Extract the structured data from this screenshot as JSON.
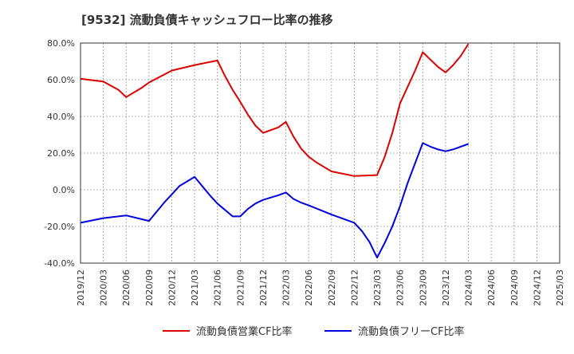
{
  "chart_data": {
    "type": "line",
    "title": "[9532]  流動負債キャッシュフロー比率の推移",
    "xlabel": "",
    "ylabel": "",
    "x": [
      "2019/12",
      "2020/03",
      "2020/06",
      "2020/09",
      "2020/12",
      "2021/03",
      "2021/06",
      "2021/09",
      "2021/12",
      "2022/03",
      "2022/06",
      "2022/09",
      "2022/12",
      "2023/03",
      "2023/06",
      "2023/09",
      "2023/12",
      "2024/03",
      "2024/06",
      "2024/09",
      "2024/12",
      "2025/03"
    ],
    "ylim": [
      -40,
      80
    ],
    "yticks": [
      -40,
      -20,
      0,
      20,
      40,
      60,
      80
    ],
    "ytick_labels": [
      "-40.0%",
      "-20.0%",
      "0.0%",
      "20.0%",
      "40.0%",
      "60.0%",
      "80.0%"
    ],
    "grid": true,
    "legend_position": "bottom",
    "series": [
      {
        "name": "流動負債営業CF比率",
        "color": "#dd0000",
        "points": [
          [
            "2019/12",
            60.5
          ],
          [
            "2020/01",
            60.0
          ],
          [
            "2020/03",
            59.0
          ],
          [
            "2020/05",
            54.5
          ],
          [
            "2020/06",
            50.5
          ],
          [
            "2020/08",
            55.5
          ],
          [
            "2020/09",
            58.5
          ],
          [
            "2020/12",
            65.0
          ],
          [
            "2021/03",
            68.0
          ],
          [
            "2021/06",
            70.5
          ],
          [
            "2021/07",
            62.0
          ],
          [
            "2021/08",
            54.5
          ],
          [
            "2021/09",
            48.0
          ],
          [
            "2021/10",
            41.0
          ],
          [
            "2021/11",
            35.0
          ],
          [
            "2021/12",
            31.0
          ],
          [
            "2022/02",
            34.0
          ],
          [
            "2022/03",
            37.0
          ],
          [
            "2022/04",
            29.0
          ],
          [
            "2022/05",
            22.5
          ],
          [
            "2022/06",
            18.0
          ],
          [
            "2022/07",
            15.0
          ],
          [
            "2022/08",
            12.5
          ],
          [
            "2022/09",
            10.0
          ],
          [
            "2022/12",
            7.5
          ],
          [
            "2023/03",
            8.0
          ],
          [
            "2023/04",
            18.0
          ],
          [
            "2023/05",
            31.0
          ],
          [
            "2023/06",
            47.0
          ],
          [
            "2023/07",
            56.0
          ],
          [
            "2023/08",
            65.0
          ],
          [
            "2023/09",
            75.0
          ],
          [
            "2023/10",
            71.0
          ],
          [
            "2023/11",
            67.0
          ],
          [
            "2023/12",
            64.0
          ],
          [
            "2024/01",
            68.0
          ],
          [
            "2024/02",
            73.0
          ],
          [
            "2024/03",
            79.5
          ]
        ]
      },
      {
        "name": "流動負債フリーCF比率",
        "color": "#0000dd",
        "points": [
          [
            "2019/12",
            -18.0
          ],
          [
            "2020/03",
            -15.5
          ],
          [
            "2020/06",
            -14.0
          ],
          [
            "2020/09",
            -17.0
          ],
          [
            "2020/10",
            -12.0
          ],
          [
            "2020/11",
            -7.0
          ],
          [
            "2020/12",
            -2.5
          ],
          [
            "2021/01",
            2.0
          ],
          [
            "2021/03",
            7.0
          ],
          [
            "2021/04",
            2.0
          ],
          [
            "2021/05",
            -3.0
          ],
          [
            "2021/06",
            -7.5
          ],
          [
            "2021/07",
            -11.0
          ],
          [
            "2021/08",
            -14.5
          ],
          [
            "2021/09",
            -14.5
          ],
          [
            "2021/10",
            -10.5
          ],
          [
            "2021/11",
            -7.5
          ],
          [
            "2021/12",
            -5.5
          ],
          [
            "2022/02",
            -3.0
          ],
          [
            "2022/03",
            -1.5
          ],
          [
            "2022/04",
            -5.0
          ],
          [
            "2022/05",
            -7.0
          ],
          [
            "2022/06",
            -8.5
          ],
          [
            "2022/09",
            -13.5
          ],
          [
            "2022/12",
            -18.0
          ],
          [
            "2023/01",
            -22.5
          ],
          [
            "2023/02",
            -28.5
          ],
          [
            "2023/03",
            -37.0
          ],
          [
            "2023/04",
            -29.0
          ],
          [
            "2023/05",
            -20.0
          ],
          [
            "2023/06",
            -9.0
          ],
          [
            "2023/07",
            3.5
          ],
          [
            "2023/08",
            14.5
          ],
          [
            "2023/09",
            25.5
          ],
          [
            "2023/10",
            23.5
          ],
          [
            "2023/11",
            22.0
          ],
          [
            "2023/12",
            21.0
          ],
          [
            "2024/01",
            22.0
          ],
          [
            "2024/02",
            23.5
          ],
          [
            "2024/03",
            25.0
          ]
        ]
      }
    ]
  }
}
